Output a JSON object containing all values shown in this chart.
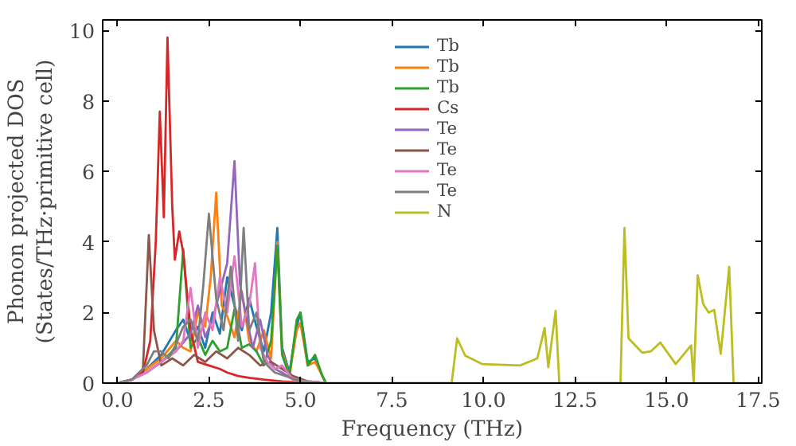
{
  "chart_data": {
    "type": "line",
    "xlabel": "Frequency (THz)",
    "ylabel": "Phonon projected DOS\n(States/THz·primitive cell)",
    "xlim": [
      -0.4,
      17.6
    ],
    "ylim": [
      0,
      10.3
    ],
    "xticks": [
      {
        "value": 0,
        "label": "0.0"
      },
      {
        "value": 2.5,
        "label": "2.5"
      },
      {
        "value": 5,
        "label": "5.0"
      },
      {
        "value": 7.5,
        "label": "7.5"
      },
      {
        "value": 10,
        "label": "10.0"
      },
      {
        "value": 12.5,
        "label": "12.5"
      },
      {
        "value": 15,
        "label": "15.0"
      },
      {
        "value": 17.5,
        "label": "17.5"
      }
    ],
    "yticks": [
      0,
      2,
      4,
      6,
      8,
      10
    ],
    "legend": "top",
    "grid": false,
    "marker": "none",
    "line_style": "solid",
    "series": [
      {
        "name": "Tb",
        "color": "#1f77b4",
        "x": [
          0,
          0.4,
          0.8,
          1.2,
          1.6,
          1.8,
          2.0,
          2.2,
          2.4,
          2.6,
          2.8,
          3.0,
          3.2,
          3.4,
          3.6,
          3.8,
          4.0,
          4.2,
          4.37,
          4.5,
          4.7,
          4.9,
          5.0,
          5.2,
          5.4,
          5.6,
          5.7
        ],
        "values": [
          0,
          0.1,
          0.4,
          0.8,
          1.5,
          1.8,
          1.2,
          1.6,
          1.0,
          2.0,
          1.4,
          3.0,
          2.2,
          1.5,
          2.4,
          1.6,
          0.9,
          2.0,
          4.4,
          1.0,
          0.3,
          1.6,
          2.0,
          0.6,
          0.7,
          0.2,
          0
        ]
      },
      {
        "name": "Tb",
        "color": "#ff7f0e",
        "x": [
          0,
          0.4,
          0.8,
          1.2,
          1.6,
          1.8,
          2.0,
          2.2,
          2.4,
          2.55,
          2.7,
          2.85,
          3.0,
          3.2,
          3.4,
          3.6,
          3.8,
          4.0,
          4.2,
          4.37,
          4.5,
          4.7,
          4.9,
          5.0,
          5.2,
          5.4,
          5.6,
          5.7
        ],
        "values": [
          0,
          0.1,
          0.4,
          0.7,
          1.2,
          1.0,
          0.9,
          2.0,
          1.6,
          3.0,
          5.4,
          2.2,
          1.9,
          1.3,
          2.6,
          1.2,
          0.9,
          1.5,
          0.7,
          4.0,
          0.9,
          0.2,
          1.5,
          1.7,
          0.5,
          0.6,
          0.2,
          0
        ]
      },
      {
        "name": "Tb",
        "color": "#2ca02c",
        "x": [
          0.8,
          1.2,
          1.6,
          1.8,
          2.0,
          2.2,
          2.4,
          2.6,
          2.8,
          3.0,
          3.2,
          3.4,
          3.6,
          3.8,
          4.0,
          4.2,
          4.37,
          4.5,
          4.7,
          4.9,
          5.0,
          5.2,
          5.4,
          5.6,
          5.7
        ],
        "values": [
          0.3,
          0.6,
          1.0,
          3.8,
          1.0,
          1.3,
          0.8,
          1.2,
          0.9,
          1.0,
          2.1,
          1.0,
          1.1,
          0.9,
          0.5,
          1.2,
          3.9,
          0.8,
          0.2,
          1.8,
          2.0,
          0.5,
          0.8,
          0.2,
          0
        ]
      },
      {
        "name": "Cs",
        "color": "#d62728",
        "x": [
          0,
          0.4,
          0.7,
          0.9,
          1.05,
          1.16,
          1.27,
          1.37,
          1.5,
          1.57,
          1.69,
          1.8,
          2.0,
          2.2,
          2.5,
          2.8,
          3.0,
          3.3,
          3.6,
          4.0,
          4.5,
          5.0,
          5.7
        ],
        "values": [
          0,
          0.1,
          0.3,
          1.2,
          4.0,
          7.7,
          4.7,
          9.8,
          5.0,
          3.5,
          4.3,
          3.7,
          1.5,
          0.6,
          0.5,
          0.4,
          0.3,
          0.2,
          0.15,
          0.1,
          0.05,
          0.02,
          0
        ]
      },
      {
        "name": "Te",
        "color": "#9467bd",
        "x": [
          0,
          0.4,
          0.8,
          1.2,
          1.6,
          2.0,
          2.2,
          2.4,
          2.6,
          2.8,
          3.0,
          3.2,
          3.35,
          3.5,
          3.7,
          3.9,
          4.1,
          4.3,
          4.5,
          4.8,
          5.2,
          5.7
        ],
        "values": [
          0,
          0.1,
          0.3,
          0.6,
          0.9,
          1.4,
          2.2,
          1.3,
          1.8,
          2.6,
          3.4,
          6.3,
          2.8,
          2.0,
          1.0,
          1.8,
          0.8,
          0.4,
          0.3,
          0.1,
          0.05,
          0
        ]
      },
      {
        "name": "Te",
        "color": "#8c564b",
        "x": [
          0,
          0.4,
          0.7,
          0.86,
          1.0,
          1.2,
          1.5,
          1.8,
          2.1,
          2.4,
          2.7,
          3.0,
          3.3,
          3.6,
          3.9,
          4.2,
          4.5,
          4.8,
          5.2,
          5.7
        ],
        "values": [
          0,
          0.1,
          0.4,
          4.2,
          1.5,
          0.5,
          0.7,
          0.5,
          0.8,
          0.6,
          0.9,
          0.7,
          1.0,
          0.8,
          0.5,
          0.6,
          0.4,
          0.2,
          0.05,
          0
        ]
      },
      {
        "name": "Te",
        "color": "#e377c2",
        "x": [
          0,
          0.4,
          0.8,
          1.2,
          1.6,
          1.8,
          2.0,
          2.2,
          2.4,
          2.6,
          2.8,
          3.0,
          3.2,
          3.4,
          3.6,
          3.76,
          3.9,
          4.1,
          4.3,
          4.5,
          4.8,
          5.2,
          5.7
        ],
        "values": [
          0,
          0.1,
          0.3,
          0.6,
          0.9,
          1.2,
          2.7,
          1.0,
          2.0,
          1.5,
          3.0,
          2.0,
          3.6,
          1.6,
          2.2,
          3.4,
          1.0,
          0.6,
          0.4,
          0.5,
          0.1,
          0.05,
          0
        ]
      },
      {
        "name": "Te",
        "color": "#7f7f7f",
        "x": [
          0,
          0.4,
          0.8,
          1.0,
          1.2,
          1.4,
          1.6,
          1.8,
          2.0,
          2.2,
          2.35,
          2.5,
          2.7,
          2.9,
          3.1,
          3.3,
          3.45,
          3.6,
          3.8,
          4.0,
          4.3,
          4.6,
          5.0,
          5.7
        ],
        "values": [
          0,
          0.1,
          0.5,
          0.9,
          0.9,
          0.7,
          1.1,
          1.6,
          1.8,
          1.2,
          2.8,
          4.8,
          2.4,
          1.5,
          3.3,
          1.2,
          4.4,
          1.5,
          2.0,
          0.6,
          0.3,
          0.2,
          0.05,
          0
        ]
      },
      {
        "name": "N",
        "color": "#bcbd22",
        "x": [
          0,
          9.13,
          9.28,
          9.5,
          9.96,
          11.0,
          11.47,
          11.67,
          11.77,
          11.97,
          12.07,
          13.74,
          13.85,
          13.96,
          14.34,
          14.57,
          14.83,
          15.25,
          15.67,
          15.74,
          15.85,
          16.0,
          16.15,
          16.3,
          16.48,
          16.71,
          16.83,
          17.0
        ],
        "values": [
          0,
          0,
          1.27,
          0.78,
          0.54,
          0.5,
          0.7,
          1.56,
          0.45,
          2.05,
          0,
          0,
          4.4,
          1.27,
          0.86,
          0.9,
          1.15,
          0.54,
          1.07,
          0,
          3.06,
          2.24,
          2.0,
          2.08,
          0.83,
          3.3,
          0,
          0
        ]
      }
    ]
  }
}
